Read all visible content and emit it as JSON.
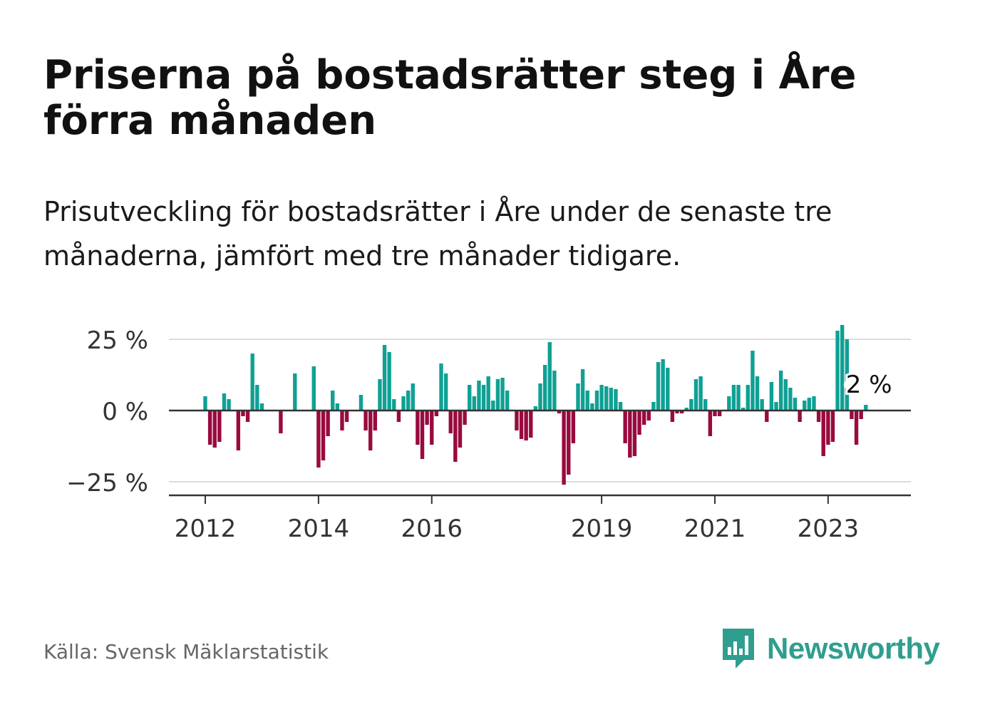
{
  "title": "Priserna på bostadsrätter steg i Åre förra månaden",
  "subtitle": "Prisutveckling för bostadsrätter i Åre under de senaste tre månaderna, jämfört med tre månader tidigare.",
  "source": "Källa: Svensk Mäklarstatistik",
  "logo": {
    "name": "Newsworthy",
    "icon": "bar-chart-speech-bubble-icon"
  },
  "colors": {
    "positive": "#10a094",
    "negative": "#990a3f",
    "accent": "#2f9e8f"
  },
  "chart_data": {
    "type": "bar",
    "x_start": "2012-01",
    "frequency": "monthly",
    "xticks": [
      "2012",
      "2014",
      "2016",
      "2019",
      "2021",
      "2023"
    ],
    "yticks": [
      "25 %",
      "0 %",
      "−25 %"
    ],
    "ylim": [
      -30,
      30
    ],
    "grid": true,
    "annotation": {
      "label": "2 %",
      "target": "last"
    },
    "values": [
      5,
      -12,
      -13,
      -11,
      6,
      4,
      0,
      -14,
      -2,
      -4,
      20,
      9,
      2.5,
      0,
      0,
      0,
      -8,
      0,
      0,
      13,
      0,
      0,
      0,
      15.5,
      -20,
      -17.5,
      -9,
      7,
      2.5,
      -7,
      -4,
      0,
      0,
      5.5,
      -7,
      -14,
      -7,
      11,
      23,
      20.5,
      4,
      -4,
      5,
      7,
      9.5,
      -12,
      -17,
      -5,
      -12,
      -2,
      16.5,
      13,
      -8,
      -18,
      -13,
      -5,
      9,
      5,
      10.5,
      9,
      12,
      3.5,
      11,
      11.5,
      7,
      0,
      -7,
      -10,
      -10.5,
      -9.5,
      1.5,
      9.5,
      16,
      24,
      14,
      -1,
      -26,
      -22.5,
      -11.5,
      9.5,
      14.5,
      7,
      2.5,
      7,
      9,
      8.5,
      8,
      7.5,
      3,
      -11.5,
      -16.5,
      -16,
      -8.5,
      -5,
      -3.5,
      3,
      17,
      18,
      15,
      -4,
      -1,
      -1,
      1,
      4,
      11,
      12,
      4,
      -9,
      -2,
      -2,
      0,
      5,
      9,
      9,
      1,
      9,
      21,
      12,
      4,
      -4,
      10,
      3,
      14,
      11,
      8,
      4.5,
      -4,
      3.5,
      4.5,
      5,
      -4,
      -16,
      -12,
      -11,
      28,
      30,
      25,
      -3,
      -12,
      -3,
      2
    ]
  }
}
